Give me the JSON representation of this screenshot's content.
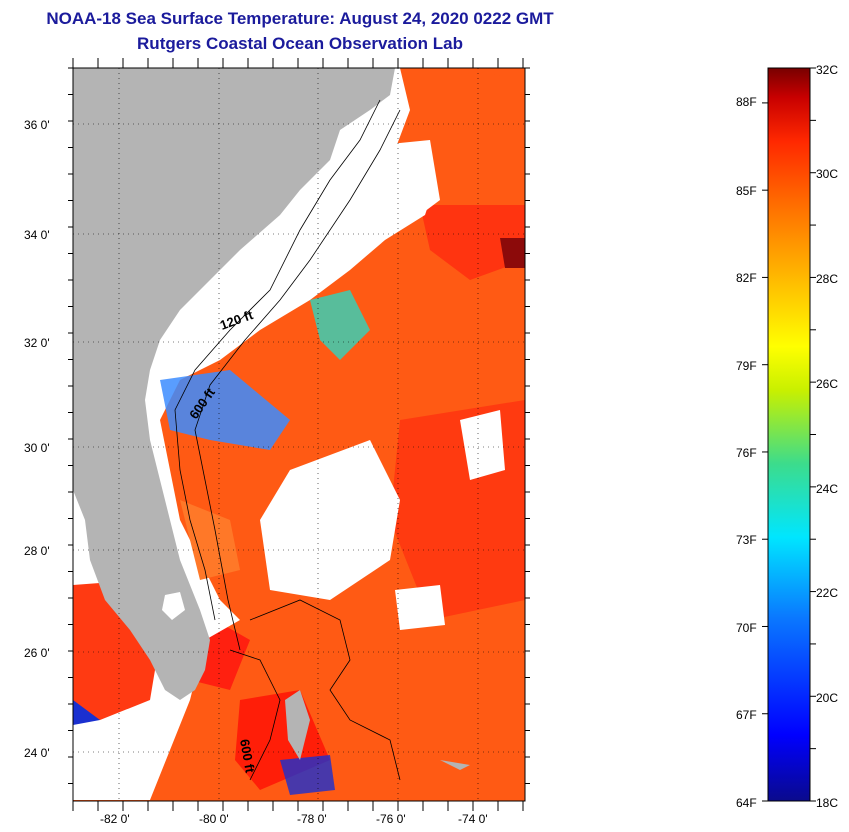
{
  "title": "NOAA-18 Sea Surface Temperature:  August 24, 2020 0222 GMT",
  "subtitle": "Rutgers Coastal Ocean Observation Lab",
  "map": {
    "lon_labels": [
      "-82 0'",
      "-80 0'",
      "-78 0'",
      "-76 0'",
      "-74 0'"
    ],
    "lat_labels": [
      "36 0'",
      "34 0'",
      "32 0'",
      "30 0'",
      "28 0'",
      "26 0'",
      "24 0'"
    ],
    "isobath_labels": [
      "120 ft",
      "600 ft",
      "600 ft"
    ],
    "colors": {
      "land": "#b4b4b4",
      "cloud": "#ffffff",
      "warm": "#ff5a14",
      "hot": "#ff2e0c",
      "cool": "#3c8cff",
      "cold": "#1020c8"
    }
  },
  "colorbar": {
    "celsius_labels": [
      "32C",
      "30C",
      "28C",
      "26C",
      "24C",
      "22C",
      "20C",
      "18C"
    ],
    "fahrenheit_labels": [
      "88F",
      "85F",
      "82F",
      "79F",
      "76F",
      "73F",
      "70F",
      "67F",
      "64F"
    ],
    "range_c": [
      18,
      32
    ]
  }
}
